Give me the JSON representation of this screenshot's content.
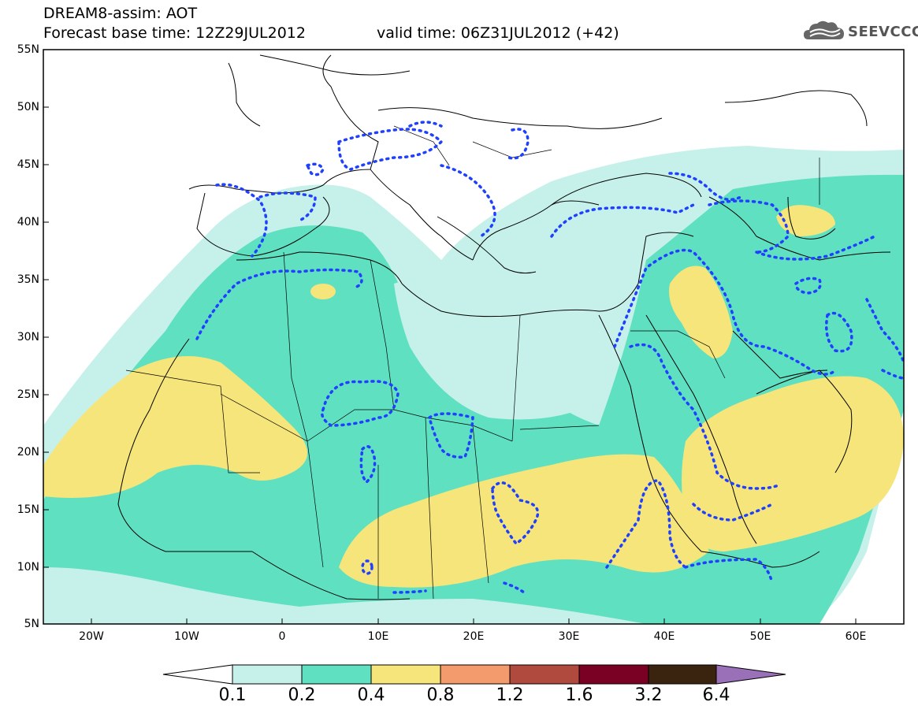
{
  "header": {
    "line1": "DREAM8-assim: AOT",
    "line2": "Forecast base time: 12Z29JUL2012",
    "valid": "valid time: 06Z31JUL2012 (+42)",
    "logo_text": "SEEVCCC"
  },
  "map": {
    "lat_labels": [
      "55N",
      "50N",
      "45N",
      "40N",
      "35N",
      "30N",
      "25N",
      "20N",
      "15N",
      "10N",
      "5N"
    ],
    "lon_labels": [
      "20W",
      "10W",
      "0",
      "10E",
      "20E",
      "30E",
      "40E",
      "50E",
      "60E"
    ],
    "extent": {
      "lon": [
        -25,
        65
      ],
      "lat": [
        5,
        55
      ]
    },
    "colors": {
      "land_bg": "#ffffff",
      "level_01": "#c6f1ea",
      "level_02": "#5fe0c0",
      "level_04": "#f6e57a",
      "contour": "#2040ff",
      "coast": "#000000"
    }
  },
  "colorbar": {
    "labels": [
      "0.1",
      "0.2",
      "0.4",
      "0.8",
      "1.2",
      "1.6",
      "3.2",
      "6.4"
    ],
    "colors": [
      "#c6f1ea",
      "#5fe0c0",
      "#f6e57a",
      "#f39b6c",
      "#b04a3e",
      "#7a0024",
      "#3a2410",
      "#9a70b8"
    ]
  }
}
